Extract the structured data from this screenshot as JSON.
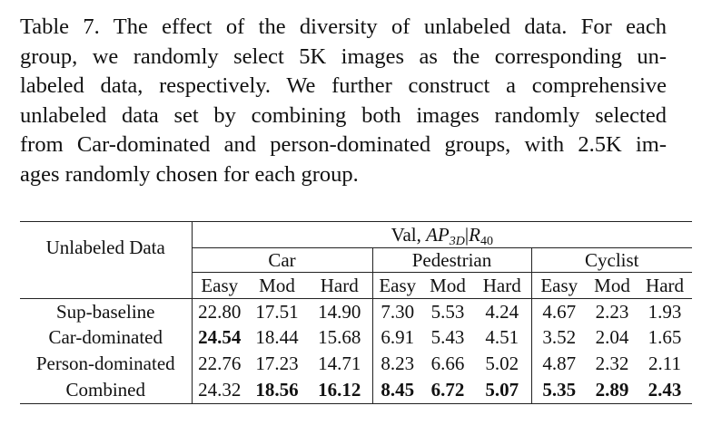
{
  "caption": {
    "lines": [
      "Table 7.  The effect of the diversity of unlabeled data.  For each",
      "group, we randomly select 5K images as the corresponding un-",
      "labeled data, respectively.  We further construct a comprehensive",
      "unlabeled data set by combining both images randomly selected",
      "from Car-dominated and person-dominated groups, with 2.5K im-",
      "ages randomly chosen for each group."
    ]
  },
  "table": {
    "row_header": "Unlabeled Data",
    "metric": {
      "prefix": "Val, ",
      "ap": "AP",
      "ap_sub": "3D",
      "sep": "|",
      "r": "R",
      "r_sub": "40"
    },
    "groups": [
      "Car",
      "Pedestrian",
      "Cyclist"
    ],
    "levels": [
      "Easy",
      "Mod",
      "Hard",
      "Easy",
      "Mod",
      "Hard",
      "Easy",
      "Mod",
      "Hard"
    ],
    "rows": [
      {
        "name": "Sup-baseline",
        "values": [
          "22.80",
          "17.51",
          "14.90",
          "7.30",
          "5.53",
          "4.24",
          "4.67",
          "2.23",
          "1.93"
        ],
        "bold": [
          false,
          false,
          false,
          false,
          false,
          false,
          false,
          false,
          false
        ]
      },
      {
        "name": "Car-dominated",
        "values": [
          "24.54",
          "18.44",
          "15.68",
          "6.91",
          "5.43",
          "4.51",
          "3.52",
          "2.04",
          "1.65"
        ],
        "bold": [
          true,
          false,
          false,
          false,
          false,
          false,
          false,
          false,
          false
        ]
      },
      {
        "name": "Person-dominated",
        "values": [
          "22.76",
          "17.23",
          "14.71",
          "8.23",
          "6.66",
          "5.02",
          "4.87",
          "2.32",
          "2.11"
        ],
        "bold": [
          false,
          false,
          false,
          false,
          false,
          false,
          false,
          false,
          false
        ]
      },
      {
        "name": "Combined",
        "values": [
          "24.32",
          "18.56",
          "16.12",
          "8.45",
          "6.72",
          "5.07",
          "5.35",
          "2.89",
          "2.43"
        ],
        "bold": [
          false,
          true,
          true,
          true,
          true,
          true,
          true,
          true,
          true
        ]
      }
    ]
  }
}
